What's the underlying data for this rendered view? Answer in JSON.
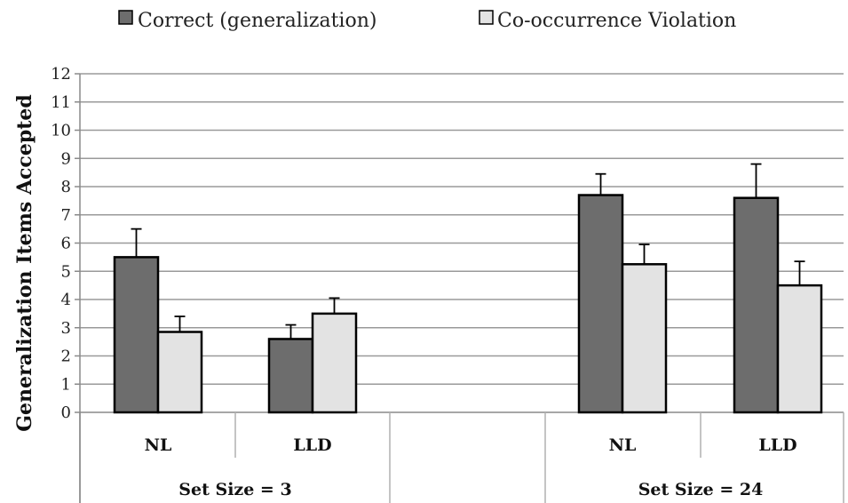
{
  "chart_data": {
    "type": "bar",
    "ylabel": "Generalization Items Accepted",
    "ylim": [
      0,
      12
    ],
    "ytick_labels": [
      "0",
      "1",
      "2",
      "3",
      "4",
      "5",
      "6",
      "7",
      "8",
      "9",
      "10",
      "11",
      "12"
    ],
    "grid": true,
    "legend_position": "top",
    "groups": [
      {
        "label": "Set Size = 3",
        "categories": [
          "NL",
          "LLD"
        ]
      },
      {
        "label": "Set Size = 24",
        "categories": [
          "NL",
          "LLD"
        ]
      }
    ],
    "categories": [
      "NL",
      "LLD",
      "NL",
      "LLD"
    ],
    "series": [
      {
        "name": "Correct (generalization)",
        "color": "#6d6d6d",
        "values": [
          5.5,
          2.6,
          7.7,
          7.6
        ],
        "error": [
          1.0,
          0.5,
          0.75,
          1.2
        ]
      },
      {
        "name": "Co-occurrence Violation",
        "color": "#e3e3e3",
        "values": [
          2.85,
          3.5,
          5.25,
          4.5
        ],
        "error": [
          0.55,
          0.55,
          0.7,
          0.85
        ]
      }
    ]
  }
}
